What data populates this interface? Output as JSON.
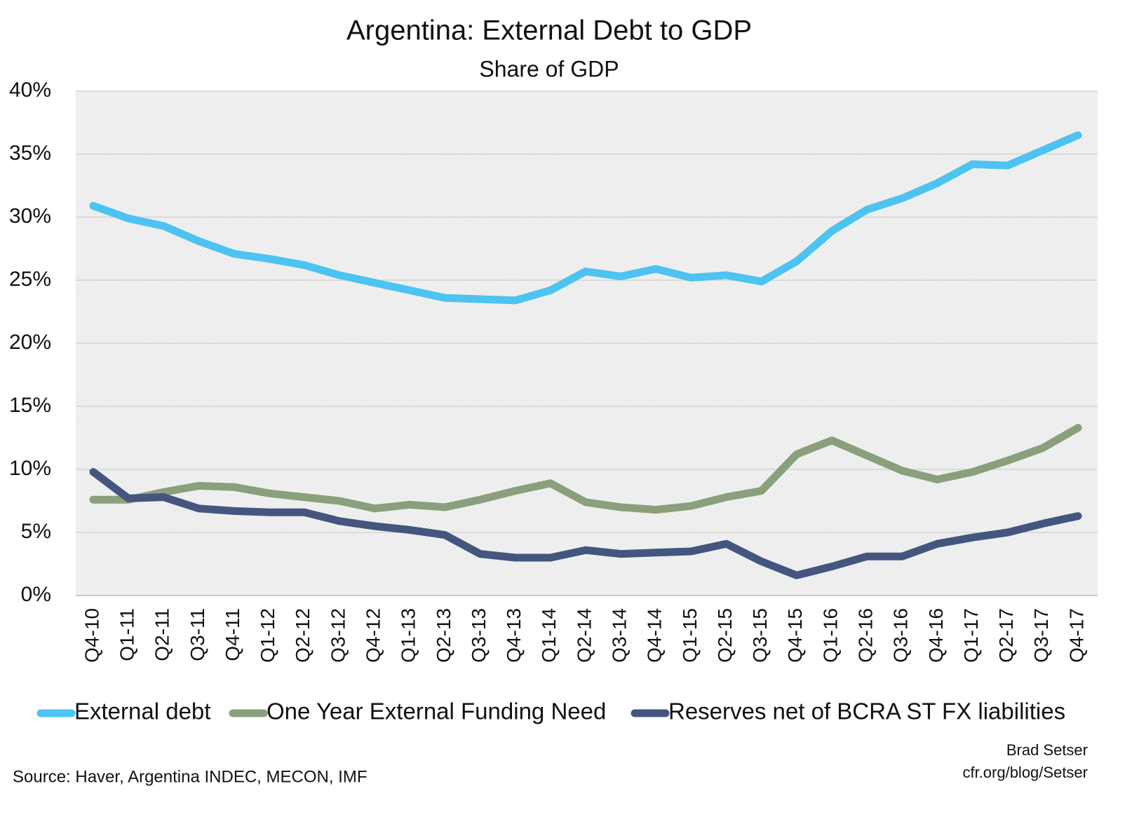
{
  "chart_data": {
    "type": "line",
    "title": "Argentina: External Debt to GDP",
    "subtitle": "Share of GDP",
    "source": "Source: Haver, Argentina INDEC, MECON, IMF",
    "author": "Brad Setser",
    "website": "cfr.org/blog/Setser",
    "categories": [
      "Q4-10",
      "Q1-11",
      "Q2-11",
      "Q3-11",
      "Q4-11",
      "Q1-12",
      "Q2-12",
      "Q3-12",
      "Q4-12",
      "Q1-13",
      "Q2-13",
      "Q3-13",
      "Q4-13",
      "Q1-14",
      "Q2-14",
      "Q3-14",
      "Q4-14",
      "Q1-15",
      "Q2-15",
      "Q3-15",
      "Q4-15",
      "Q1-16",
      "Q2-16",
      "Q3-16",
      "Q4-16",
      "Q1-17",
      "Q2-17",
      "Q3-17",
      "Q4-17"
    ],
    "series": [
      {
        "name": "External debt",
        "color": "#4cc3f0",
        "values": [
          30.9,
          29.9,
          29.3,
          28.1,
          27.1,
          26.7,
          26.2,
          25.4,
          24.8,
          24.2,
          23.6,
          23.5,
          23.4,
          24.2,
          25.7,
          25.3,
          25.9,
          25.2,
          25.4,
          24.9,
          26.5,
          28.9,
          30.6,
          31.5,
          32.7,
          34.2,
          34.1,
          35.3,
          36.5
        ]
      },
      {
        "name": "One Year External Funding Need",
        "color": "#8a9f7b",
        "values": [
          7.6,
          7.6,
          8.2,
          8.7,
          8.6,
          8.1,
          7.8,
          7.5,
          6.9,
          7.2,
          7.0,
          7.6,
          8.3,
          8.9,
          7.4,
          7.0,
          6.8,
          7.1,
          7.8,
          8.3,
          11.2,
          12.3,
          11.1,
          9.9,
          9.2,
          9.8,
          10.7,
          11.7,
          13.3
        ]
      },
      {
        "name": "Reserves net of BCRA ST FX liabilities",
        "color": "#44557f",
        "values": [
          9.8,
          7.7,
          7.8,
          6.9,
          6.7,
          6.6,
          6.6,
          5.9,
          5.5,
          5.2,
          4.8,
          3.3,
          3.0,
          3.0,
          3.6,
          3.3,
          3.4,
          3.5,
          4.1,
          2.7,
          1.6,
          2.3,
          3.1,
          3.1,
          4.1,
          4.6,
          5.0,
          5.7,
          6.3
        ]
      }
    ],
    "ylim": [
      0,
      40
    ],
    "yticks": [
      {
        "value": 0,
        "label": "0%"
      },
      {
        "value": 5,
        "label": "5%"
      },
      {
        "value": 10,
        "label": "10%"
      },
      {
        "value": 15,
        "label": "15%"
      },
      {
        "value": 20,
        "label": "20%"
      },
      {
        "value": 25,
        "label": "25%"
      },
      {
        "value": 30,
        "label": "30%"
      },
      {
        "value": 35,
        "label": "35%"
      },
      {
        "value": 40,
        "label": "40%"
      }
    ],
    "grid": true,
    "legend": "bottom"
  }
}
